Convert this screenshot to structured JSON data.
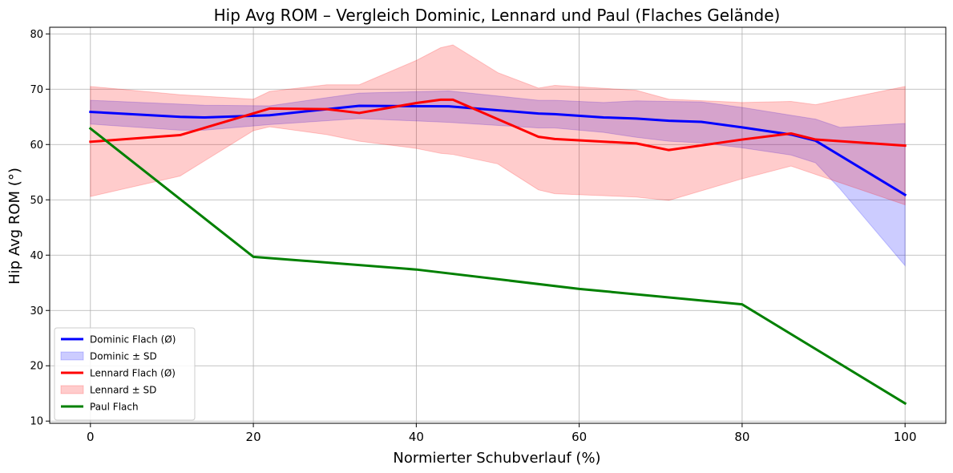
{
  "chart_data": {
    "type": "line",
    "title": "Hip Avg ROM – Vergleich Dominic, Lennard und Paul (Flaches Gelände)",
    "xlabel": "Normierter Schubverlauf (%)",
    "ylabel": "Hip Avg ROM (°)",
    "xlim": [
      -5,
      105
    ],
    "ylim": [
      9.6,
      81.2
    ],
    "xticks": [
      0,
      20,
      40,
      60,
      80,
      100
    ],
    "yticks": [
      10,
      20,
      30,
      40,
      50,
      60,
      70,
      80
    ],
    "grid": true,
    "legend_position": "lower-left",
    "series": [
      {
        "name": "Dominic Flach (Ø)",
        "kind": "line",
        "color": "#0000ff",
        "x": [
          0,
          11,
          14,
          22,
          33,
          44,
          55,
          57,
          63,
          67,
          71,
          75,
          80,
          86,
          89,
          100
        ],
        "y": [
          65.9,
          65.0,
          64.9,
          65.3,
          67.0,
          66.9,
          65.6,
          65.5,
          64.9,
          64.7,
          64.3,
          64.1,
          63.1,
          61.8,
          60.7,
          50.9
        ]
      },
      {
        "name": "Dominic ± SD",
        "kind": "band",
        "color": "#0000ff",
        "x": [
          0,
          11,
          14,
          22,
          33,
          44,
          55,
          57,
          63,
          67,
          71,
          75,
          80,
          86,
          89,
          92,
          100
        ],
        "upper": [
          68.0,
          67.3,
          67.1,
          67.0,
          69.3,
          69.7,
          68.0,
          68.0,
          67.6,
          67.9,
          67.8,
          67.7,
          66.7,
          65.3,
          64.6,
          63.1,
          63.8
        ],
        "lower": [
          63.7,
          62.6,
          62.6,
          63.6,
          64.7,
          64.0,
          63.0,
          63.0,
          62.2,
          61.3,
          60.6,
          60.3,
          59.4,
          58.1,
          56.7,
          52.0,
          38.1
        ]
      },
      {
        "name": "Lennard Flach (Ø)",
        "kind": "line",
        "color": "#ff0000",
        "x": [
          0,
          11,
          22,
          29,
          33,
          40,
          43,
          44.5,
          55,
          57,
          67,
          71,
          80,
          86,
          89,
          100
        ],
        "y": [
          60.5,
          61.7,
          66.5,
          66.4,
          65.7,
          67.5,
          68.1,
          68.1,
          61.4,
          61.0,
          60.2,
          59.0,
          60.9,
          62.0,
          60.9,
          59.8
        ]
      },
      {
        "name": "Lennard ± SD",
        "kind": "band",
        "color": "#ff0000",
        "x": [
          0,
          11,
          20,
          22,
          29,
          33,
          40,
          43,
          44.5,
          50,
          55,
          57,
          67,
          71,
          80,
          86,
          89,
          100
        ],
        "upper": [
          70.5,
          69.0,
          68.2,
          69.6,
          70.8,
          70.8,
          75.2,
          77.5,
          78.0,
          73.0,
          70.2,
          70.7,
          69.8,
          68.2,
          67.6,
          67.8,
          67.2,
          70.5
        ],
        "lower": [
          50.6,
          54.3,
          62.5,
          63.2,
          61.8,
          60.6,
          59.3,
          58.4,
          58.2,
          56.5,
          51.8,
          51.1,
          50.5,
          49.9,
          53.8,
          56.1,
          54.6,
          49.1
        ]
      },
      {
        "name": "Paul Flach",
        "kind": "line",
        "color": "#008000",
        "x": [
          0,
          20,
          40,
          60,
          80,
          100
        ],
        "y": [
          62.9,
          39.7,
          37.4,
          33.9,
          31.1,
          13.2
        ]
      }
    ]
  }
}
